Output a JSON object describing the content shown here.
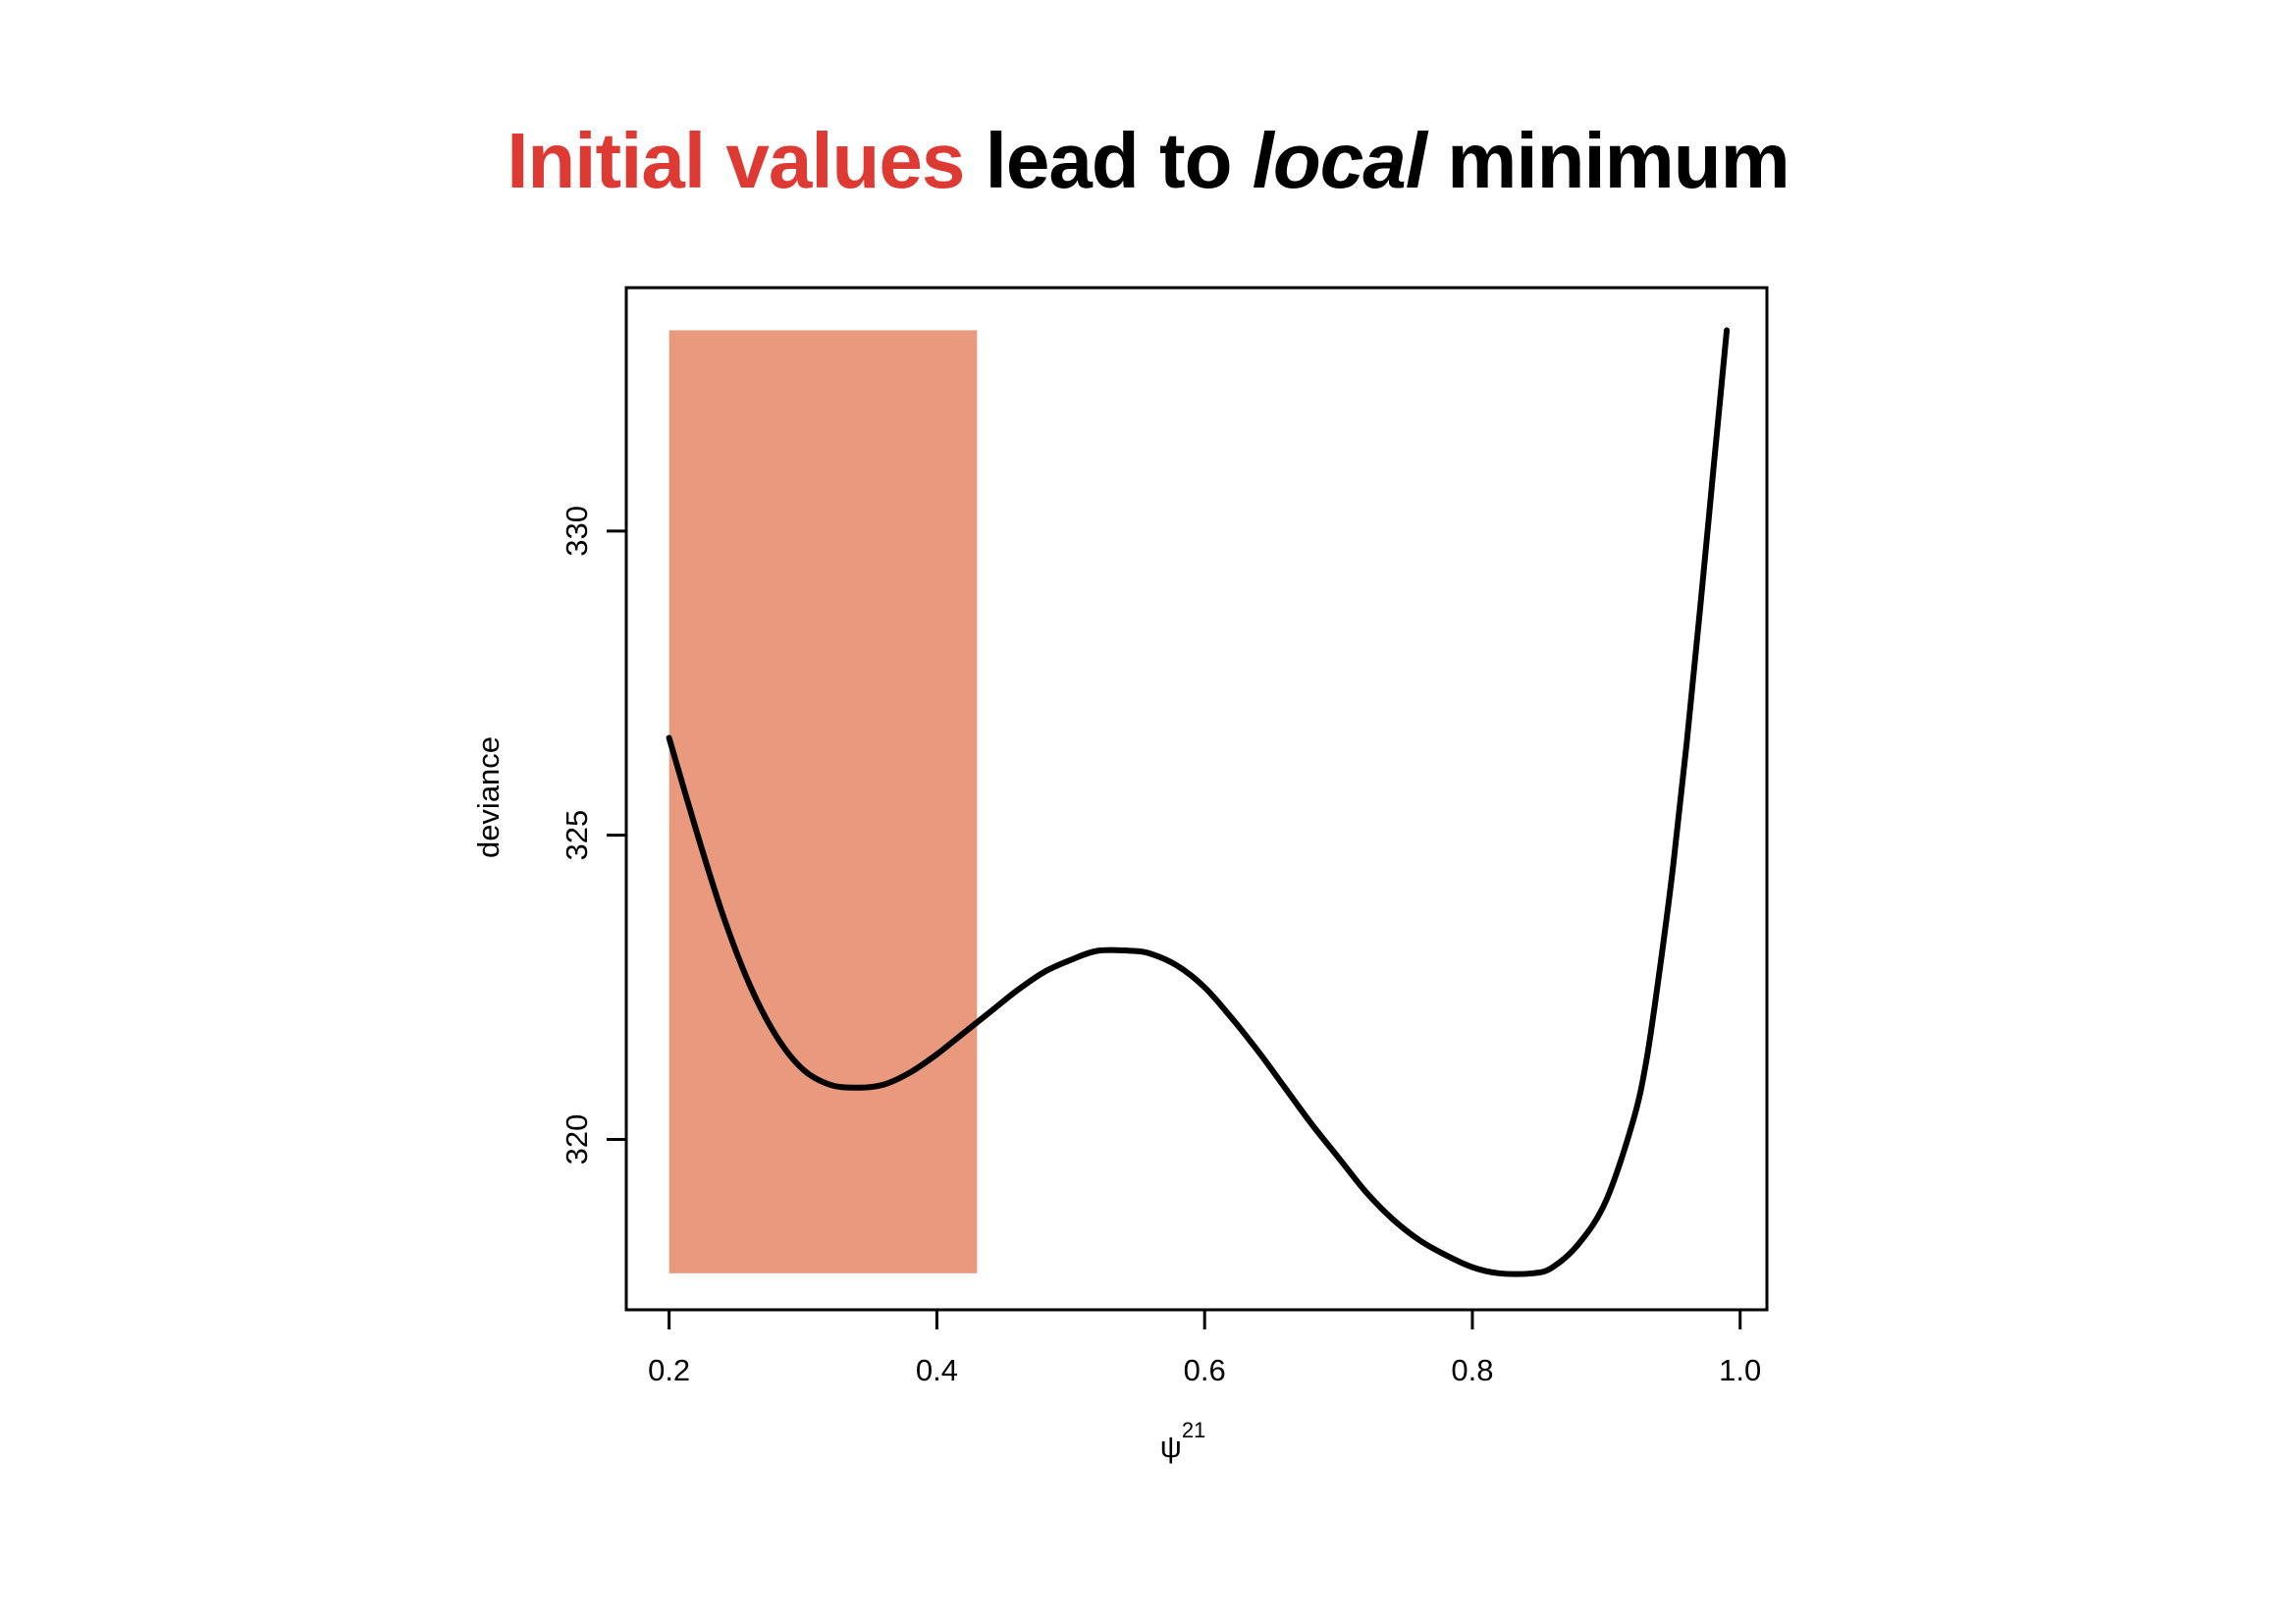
{
  "title": {
    "part1": "Initial values",
    "part2": " lead to ",
    "part3": "local",
    "part4": " minimum",
    "accent_color": "#de3a34"
  },
  "chart_data": {
    "type": "line",
    "xlabel": "ψ",
    "xlabel_superscript": "21",
    "ylabel": "deviance",
    "xlim": [
      0.168,
      1.02
    ],
    "ylim": [
      317.2,
      334.0
    ],
    "xticks": [
      0.2,
      0.4,
      0.6,
      0.8,
      1.0
    ],
    "xtick_labels": [
      "0.2",
      "0.4",
      "0.6",
      "0.8",
      "1.0"
    ],
    "yticks": [
      320,
      325,
      330
    ],
    "ytick_labels": [
      "320",
      "325",
      "330"
    ],
    "grid": false,
    "series": [
      {
        "color": "#000000",
        "x": [
          0.2,
          0.22,
          0.24,
          0.26,
          0.28,
          0.3,
          0.32,
          0.34,
          0.36,
          0.38,
          0.4,
          0.42,
          0.44,
          0.46,
          0.48,
          0.5,
          0.52,
          0.545,
          0.56,
          0.58,
          0.6,
          0.62,
          0.64,
          0.66,
          0.68,
          0.7,
          0.72,
          0.74,
          0.76,
          0.78,
          0.8,
          0.82,
          0.845,
          0.86,
          0.88,
          0.9,
          0.92,
          0.93,
          0.94,
          0.95,
          0.96,
          0.97,
          0.98,
          0.99
        ],
        "y": [
          326.6,
          325.1,
          323.7,
          322.55,
          321.7,
          321.15,
          320.9,
          320.85,
          320.9,
          321.1,
          321.4,
          321.75,
          322.1,
          322.45,
          322.75,
          322.95,
          323.1,
          323.1,
          323.05,
          322.85,
          322.5,
          322.0,
          321.45,
          320.85,
          320.25,
          319.7,
          319.15,
          318.7,
          318.35,
          318.1,
          317.9,
          317.8,
          317.8,
          317.9,
          318.3,
          319.0,
          320.3,
          321.3,
          322.8,
          324.5,
          326.5,
          328.7,
          331.0,
          333.3
        ]
      }
    ],
    "highlight_region": {
      "x": [
        0.2,
        0.43
      ],
      "y": [
        317.8,
        333.3
      ],
      "color": "#e9997e"
    }
  }
}
